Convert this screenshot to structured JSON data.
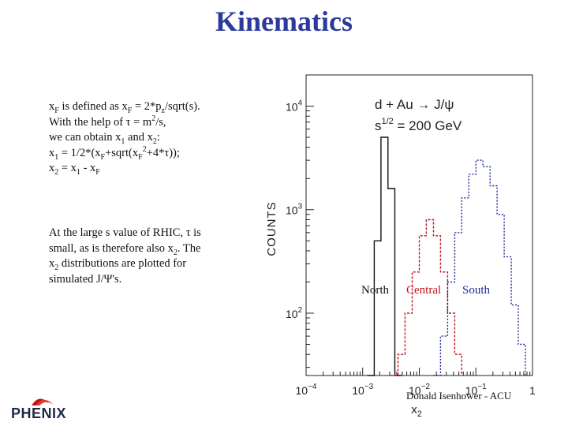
{
  "header": {
    "title": "Kinematics"
  },
  "text": {
    "block1": [
      [
        "x",
        {
          "sub": "F"
        },
        " is defined as x",
        {
          "sub": "F"
        },
        " = 2*p",
        {
          "sub": "z"
        },
        "/sqrt(s)."
      ],
      [
        "With the help of τ = m",
        {
          "sup": "2"
        },
        "/s,"
      ],
      [
        "we can obtain x",
        {
          "sub": "1"
        },
        " and x",
        {
          "sub": "2"
        },
        ":"
      ],
      [
        "x",
        {
          "sub": "1"
        },
        " = 1/2*(x",
        {
          "sub": "F"
        },
        "+sqrt(x",
        {
          "sub": "F"
        },
        {
          "sup": "2"
        },
        "+4*τ));"
      ],
      [
        "x",
        {
          "sub": "2"
        },
        " = x",
        {
          "sub": "1"
        },
        " - x",
        {
          "sub": "F"
        }
      ]
    ],
    "block2": [
      [
        "At the large s value of RHIC, τ is"
      ],
      [
        "small, as is therefore also x",
        {
          "sub": "2"
        },
        ". The"
      ],
      [
        " x",
        {
          "sub": "2"
        },
        " distributions are plotted for"
      ],
      [
        "simulated J/Ψ's."
      ]
    ]
  },
  "chart_data": {
    "type": "line",
    "title": "d + Au → J/ψ",
    "subtitle_prefix": "s",
    "subtitle_exp": "1/2",
    "subtitle_value": " = 200 GeV",
    "ylabel": "COUNTS",
    "xlabel": "x",
    "xlabel_sub": "2",
    "xscale": "log",
    "yscale": "log",
    "xlim": [
      0.0001,
      1
    ],
    "ylim": [
      25,
      20000
    ],
    "x_tick_labels": [
      {
        "base": "10",
        "exp": "−4",
        "value": 0.0001
      },
      {
        "base": "10",
        "exp": "−3",
        "value": 0.001
      },
      {
        "base": "10",
        "exp": "−2",
        "value": 0.01
      },
      {
        "base": "10",
        "exp": "−1",
        "value": 0.1
      },
      {
        "base": "1",
        "exp": "",
        "value": 1
      }
    ],
    "y_tick_labels": [
      {
        "base": "10",
        "exp": "2",
        "value": 100
      },
      {
        "base": "10",
        "exp": "3",
        "value": 1000
      },
      {
        "base": "10",
        "exp": "4",
        "value": 10000
      }
    ],
    "series": [
      {
        "name": "North",
        "color": "#111111",
        "dash": "",
        "edges": [
          0.0012,
          0.0016,
          0.0021,
          0.0028,
          0.0037,
          0.0049
        ],
        "values": [
          25,
          500,
          5000,
          1600,
          25
        ]
      },
      {
        "name": "Central",
        "color": "#c0141c",
        "dash": "3,2",
        "edges": [
          0.0031,
          0.0042,
          0.0056,
          0.0075,
          0.01,
          0.0133,
          0.0178,
          0.0237,
          0.0316,
          0.0422,
          0.0562
        ],
        "values": [
          25,
          40,
          100,
          250,
          560,
          800,
          560,
          250,
          100,
          40
        ]
      },
      {
        "name": "South",
        "color": "#1c2a9a",
        "dash": "2,2",
        "edges": [
          0.0178,
          0.0237,
          0.0316,
          0.0422,
          0.0562,
          0.075,
          0.1,
          0.1334,
          0.178,
          0.237,
          0.316,
          0.422,
          0.562,
          0.75
        ],
        "values": [
          25,
          60,
          200,
          600,
          1300,
          2200,
          3000,
          2600,
          1700,
          900,
          350,
          120,
          50
        ]
      }
    ]
  },
  "footer": {
    "author": "Donald Isenhower - ACU"
  },
  "logo": {
    "text": "PHENIX"
  }
}
